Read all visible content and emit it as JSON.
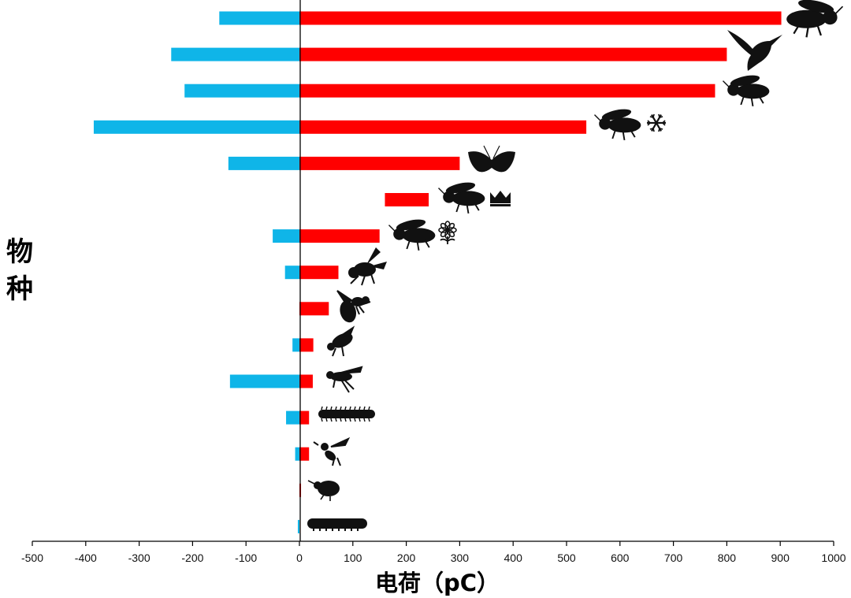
{
  "chart_data": {
    "type": "bar",
    "orientation": "horizontal",
    "title": "",
    "xlabel": "电荷（pC）",
    "ylabel": "物种",
    "xlim": [
      -500,
      1000
    ],
    "xticks": [
      -500,
      -400,
      -300,
      -200,
      -100,
      0,
      100,
      200,
      300,
      400,
      500,
      600,
      700,
      800,
      900,
      1000
    ],
    "categories": [
      "bumblebee",
      "hummingbird",
      "orchid-bee",
      "honeybee-winter",
      "butterfly",
      "honeybee-queen",
      "honeybee-flower",
      "fly",
      "wasp",
      "small-bee",
      "hoverfly",
      "caterpillar",
      "small-wasp",
      "aphid",
      "larva"
    ],
    "series": [
      {
        "name": "positive",
        "color": "#ff0000",
        "segments": [
          [
            0,
            902
          ],
          [
            0,
            800
          ],
          [
            0,
            778
          ],
          [
            0,
            537
          ],
          [
            0,
            300
          ],
          [
            160,
            242
          ],
          [
            0,
            150
          ],
          [
            0,
            73
          ],
          [
            0,
            55
          ],
          [
            0,
            26
          ],
          [
            0,
            25
          ],
          [
            0,
            18
          ],
          [
            0,
            18
          ],
          [
            0,
            3
          ],
          [
            0,
            0
          ]
        ]
      },
      {
        "name": "negative",
        "color": "#0fb5e8",
        "values": [
          -150,
          -240,
          -215,
          -385,
          -133,
          0,
          -50,
          -27,
          0,
          -13,
          -130,
          -25,
          -8,
          0,
          -3
        ]
      }
    ],
    "annotations": [
      "snowflake-icon",
      "crown-icon",
      "flower-icon"
    ]
  }
}
